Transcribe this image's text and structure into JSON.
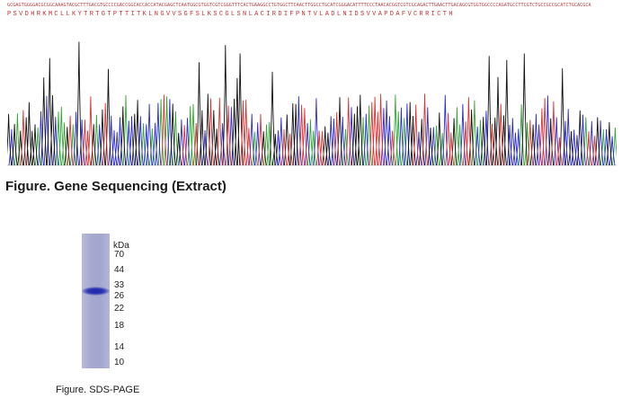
{
  "sequencing": {
    "nucleotides": "GCGAGTGGGGACGCGGCAAAGTACGCTTTGACGTGCCCCGACCGGCACCACCATACGAGCTCAATGGCGTGGTCGTCGGGTTTCACTGAAGGCCTGTGGCTTCAACTTGGCCTGCATCGGGACATTTTCCCTAACACGGTCGTCGCAGACTTGAACTTGACAGCGTGGTGGCCCCAGATGCCTTCGTCTGCCGCCGCATCTGCACGCA",
    "amino_acids": "PSVDHRKMCLLKYTRTGTPTTITKLNGVVSGFSLKSCGLSNLACIRDIFPNTVLADLNIDSVVAPDAFVCRRICTH",
    "figure_title": "Figure. Gene Sequencing (Extract)"
  },
  "sds_page": {
    "unit_label": "kDa",
    "markers": [
      "70",
      "44",
      "33",
      "26",
      "22",
      "18",
      "14",
      "10"
    ],
    "figure_caption": "Figure. SDS-PAGE"
  }
}
